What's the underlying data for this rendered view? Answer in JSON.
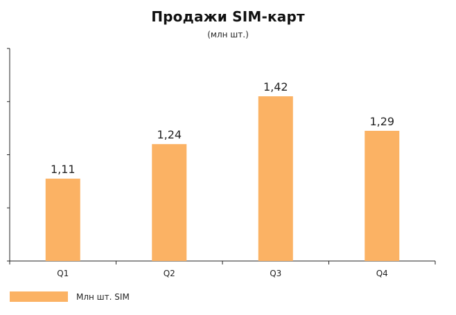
{
  "chart_data": {
    "type": "bar",
    "title": "Продажи SIM-карт",
    "subtitle": "(млн шт.)",
    "categories": [
      "Q1",
      "Q2",
      "Q3",
      "Q4"
    ],
    "series": [
      {
        "name": "Млн шт. SIM",
        "values": [
          1.11,
          1.24,
          1.42,
          1.29
        ],
        "labels": [
          "1,11",
          "1,24",
          "1,42",
          "1,29"
        ],
        "color": "#fbb264"
      }
    ],
    "ylim": [
      0.8,
      1.6
    ],
    "xlabel": "",
    "ylabel": "",
    "grid": false,
    "legend_position": "bottom-left"
  },
  "colors": {
    "bar": "#fbb264",
    "axis": "#222222"
  }
}
